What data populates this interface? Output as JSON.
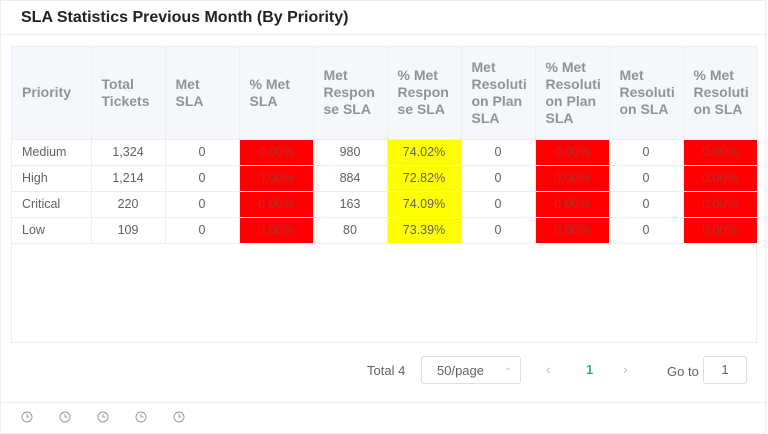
{
  "title": "SLA Statistics Previous Month (By Priority)",
  "table": {
    "headers": [
      "Priority",
      "Total Tickets",
      "Met SLA",
      "% Met SLA",
      "Met Response SLA",
      "% Met Response SLA",
      "Met Resolution Plan SLA",
      "% Met Resolution Plan SLA",
      "Met Resolution SLA",
      "% Met Resolution SLA"
    ],
    "header_display": [
      "Priority",
      "Total\nTickets",
      "Met\nSLA",
      "% Met\nSLA",
      "Met\nRespon\nse SLA",
      "% Met\nRespon\nse SLA",
      "Met\nResoluti\non Plan\nSLA",
      "% Met\nResoluti\non Plan\nSLA",
      "Met\nResoluti\non SLA",
      "% Met\nResoluti\non SLA"
    ],
    "rows": [
      [
        "Medium",
        "1,324",
        "0",
        "0.00%",
        "980",
        "74.02%",
        "0",
        "0.00%",
        "0",
        "0.00%"
      ],
      [
        "High",
        "1,214",
        "0",
        "0.00%",
        "884",
        "72.82%",
        "0",
        "0.00%",
        "0",
        "0.00%"
      ],
      [
        "Critical",
        "220",
        "0",
        "0.00%",
        "163",
        "74.09%",
        "0",
        "0.00%",
        "0",
        "0.00%"
      ],
      [
        "Low",
        "109",
        "0",
        "0.00%",
        "80",
        "73.39%",
        "0",
        "0.00%",
        "0",
        "0.00%"
      ]
    ],
    "highlight_colors": {
      "red": "#ff0000",
      "yellow": "#ffff00"
    }
  },
  "pagination": {
    "total_label": "Total 4",
    "page_size": "50/page",
    "current_page": "1",
    "goto_label": "Go to",
    "goto_value": "1"
  },
  "footer": {
    "icons": [
      "clock-icon",
      "clock-icon",
      "clock-icon",
      "clock-icon",
      "clock-icon"
    ]
  }
}
